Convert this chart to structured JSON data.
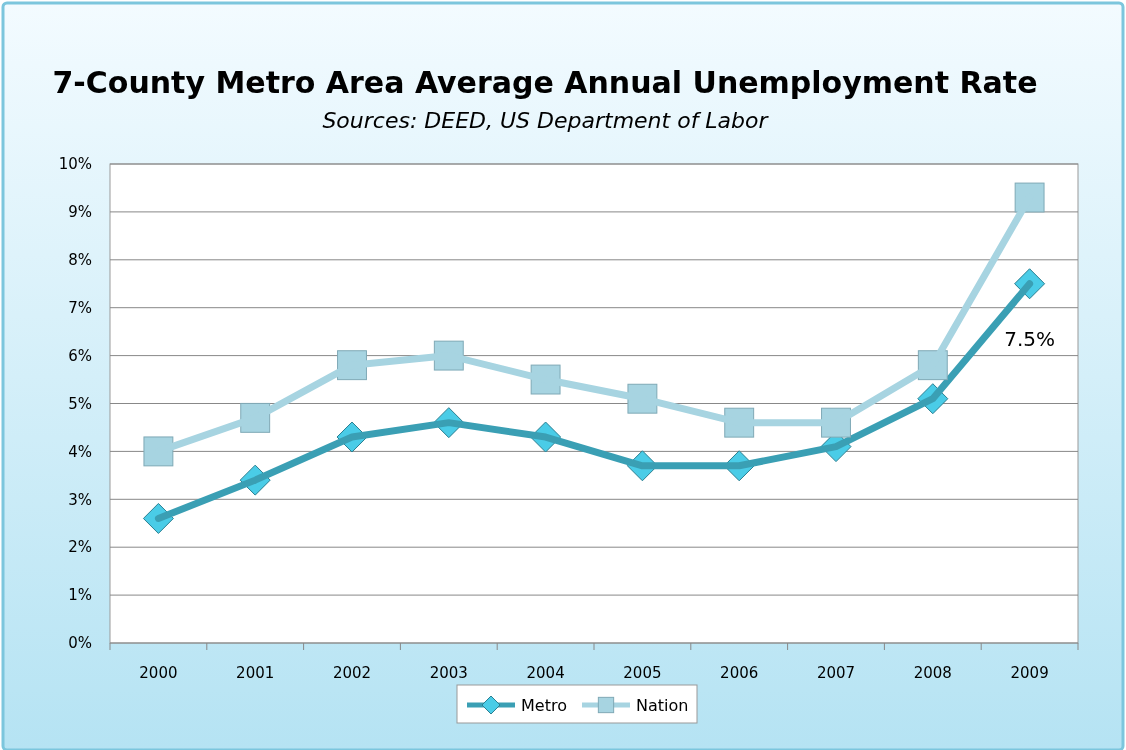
{
  "chart_data": {
    "type": "line",
    "title": "7-County Metro Area Average Annual Unemployment Rate",
    "subtitle": "Sources: DEED, US Department of Labor",
    "categories": [
      "2000",
      "2001",
      "2002",
      "2003",
      "2004",
      "2005",
      "2006",
      "2007",
      "2008",
      "2009"
    ],
    "series": [
      {
        "name": "Metro",
        "color": "#3a9fb4",
        "marker": "diamond",
        "values": [
          2.6,
          3.4,
          4.3,
          4.6,
          4.3,
          3.7,
          3.7,
          4.1,
          5.1,
          7.5
        ],
        "value_labels": [
          null,
          null,
          null,
          null,
          null,
          null,
          null,
          null,
          null,
          "7.5%"
        ]
      },
      {
        "name": "Nation",
        "color": "#a7d4e1",
        "marker": "square",
        "values": [
          4.0,
          4.7,
          5.8,
          6.0,
          5.5,
          5.1,
          4.6,
          4.6,
          5.8,
          9.3
        ]
      }
    ],
    "ylim": [
      0,
      10
    ],
    "yticks": [
      {
        "value": 0,
        "label": "0%"
      },
      {
        "value": 1,
        "label": "1%"
      },
      {
        "value": 2,
        "label": "2%"
      },
      {
        "value": 3,
        "label": "3%"
      },
      {
        "value": 4,
        "label": "4%"
      },
      {
        "value": 5,
        "label": "5%"
      },
      {
        "value": 6,
        "label": "6%"
      },
      {
        "value": 7,
        "label": "7%"
      },
      {
        "value": 8,
        "label": "8%"
      },
      {
        "value": 9,
        "label": "9%"
      },
      {
        "value": 10,
        "label": "10%"
      }
    ],
    "grid": "y",
    "legend": "bottom",
    "line_style": "solid"
  }
}
